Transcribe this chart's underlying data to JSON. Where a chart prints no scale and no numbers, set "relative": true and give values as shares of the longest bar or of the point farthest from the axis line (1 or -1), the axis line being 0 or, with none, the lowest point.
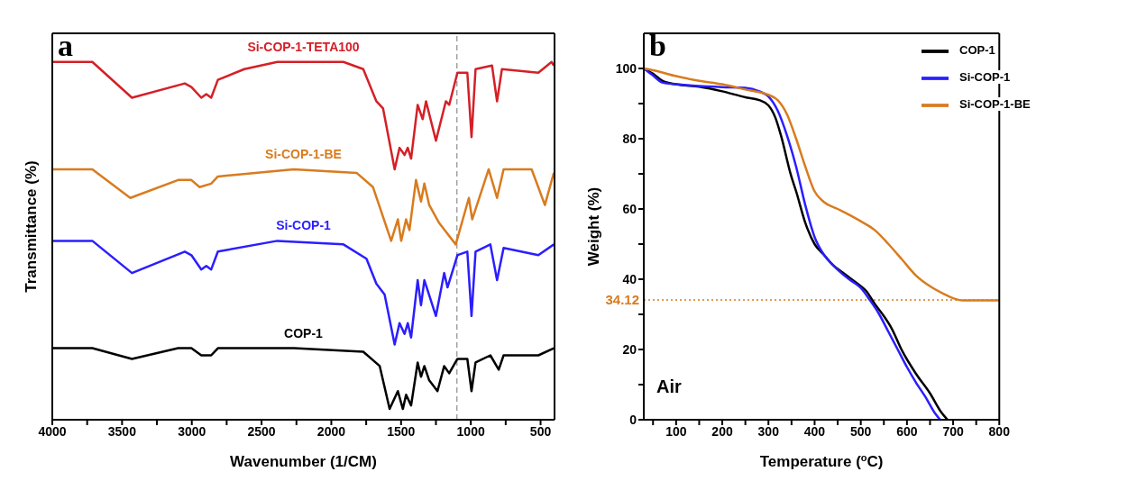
{
  "chart_data": [
    {
      "type": "line",
      "relative": true,
      "xlabel": "Wavenumber (1/CM)",
      "ylabel": "Transmittance (%)",
      "annotations": [
        "a"
      ],
      "legend": false,
      "grid": false,
      "xlim": [
        4000,
        400
      ],
      "xticks": [
        4000,
        {
          "value": 3750,
          "label": null
        },
        3500,
        {
          "value": 3250,
          "label": null
        },
        3000,
        {
          "value": 2750,
          "label": null
        },
        2500,
        {
          "value": 2250,
          "label": null
        },
        2000,
        {
          "value": 1750,
          "label": null
        },
        1500,
        {
          "value": 1250,
          "label": null
        },
        1000,
        {
          "value": 750,
          "label": null
        },
        500
      ],
      "ref_lines": [
        {
          "axis": "x",
          "value": 1100,
          "color": "#a0a0a0",
          "line_style": "dashed"
        }
      ],
      "series": [
        {
          "name": "Si-COP-1-TETA100",
          "color": "#d42027",
          "x": [
            4000,
            3713,
            3429,
            3050,
            3003,
            2932,
            2896,
            2861,
            2813,
            2624,
            2387,
            1913,
            1771,
            1677,
            1629,
            1546,
            1511,
            1475,
            1452,
            1428,
            1381,
            1345,
            1321,
            1250,
            1179,
            1155,
            1096,
            1025,
            995,
            966,
            848,
            812,
            777,
            516,
            421,
            405
          ],
          "values": [
            1.0,
            1.0,
            0.9,
            0.94,
            0.93,
            0.9,
            0.91,
            0.9,
            0.95,
            0.98,
            1.0,
            1.0,
            0.98,
            0.89,
            0.87,
            0.7,
            0.76,
            0.74,
            0.76,
            0.73,
            0.88,
            0.84,
            0.89,
            0.78,
            0.89,
            0.88,
            0.97,
            0.97,
            0.79,
            0.98,
            0.99,
            0.89,
            0.98,
            0.97,
            1.0,
            0.99
          ]
        },
        {
          "name": "Si-COP-1-BE",
          "color": "#d97b1e",
          "x": [
            4000,
            3713,
            3441,
            3098,
            3003,
            2944,
            2861,
            2813,
            2269,
            1819,
            1701,
            1571,
            1523,
            1499,
            1464,
            1440,
            1393,
            1357,
            1333,
            1298,
            1227,
            1108,
            1014,
            990,
            872,
            812,
            765,
            564,
            469,
            405
          ],
          "values": [
            0.7,
            0.7,
            0.62,
            0.67,
            0.67,
            0.65,
            0.66,
            0.68,
            0.7,
            0.69,
            0.65,
            0.5,
            0.56,
            0.5,
            0.56,
            0.53,
            0.67,
            0.61,
            0.66,
            0.6,
            0.55,
            0.49,
            0.62,
            0.56,
            0.7,
            0.62,
            0.7,
            0.7,
            0.6,
            0.69
          ]
        },
        {
          "name": "Si-COP-1",
          "color": "#2a1eff",
          "x": [
            4000,
            3713,
            3429,
            3050,
            3003,
            2932,
            2896,
            2861,
            2813,
            2387,
            1913,
            1748,
            1677,
            1618,
            1546,
            1511,
            1475,
            1452,
            1428,
            1381,
            1357,
            1333,
            1250,
            1191,
            1167,
            1096,
            1025,
            995,
            966,
            860,
            812,
            765,
            516,
            405
          ],
          "values": [
            0.5,
            0.5,
            0.41,
            0.47,
            0.46,
            0.42,
            0.43,
            0.42,
            0.47,
            0.5,
            0.49,
            0.45,
            0.38,
            0.35,
            0.21,
            0.27,
            0.24,
            0.27,
            0.23,
            0.39,
            0.32,
            0.39,
            0.29,
            0.41,
            0.37,
            0.46,
            0.47,
            0.29,
            0.47,
            0.49,
            0.39,
            0.48,
            0.46,
            0.49
          ]
        },
        {
          "name": "COP-1",
          "color": "#000000",
          "x": [
            4000,
            3713,
            3429,
            3098,
            3003,
            2932,
            2861,
            2813,
            2269,
            1771,
            1653,
            1582,
            1523,
            1487,
            1464,
            1428,
            1381,
            1357,
            1333,
            1298,
            1239,
            1191,
            1155,
            1096,
            1025,
            995,
            966,
            860,
            800,
            765,
            516,
            405
          ],
          "values": [
            0.2,
            0.2,
            0.17,
            0.2,
            0.2,
            0.18,
            0.18,
            0.2,
            0.2,
            0.19,
            0.15,
            0.03,
            0.08,
            0.03,
            0.07,
            0.04,
            0.16,
            0.12,
            0.15,
            0.11,
            0.08,
            0.15,
            0.13,
            0.17,
            0.17,
            0.08,
            0.16,
            0.18,
            0.14,
            0.18,
            0.18,
            0.2
          ]
        }
      ]
    },
    {
      "type": "line",
      "xlabel": "Temperature ($^{o}$C)",
      "ylabel": "Weight (%)",
      "annotations": [
        "b",
        "Air"
      ],
      "legend": "top right",
      "grid": false,
      "xlim": [
        30,
        800
      ],
      "xticks": [
        {
          "value": 50,
          "label": null
        },
        100,
        {
          "value": 150,
          "label": null
        },
        200,
        {
          "value": 250,
          "label": null
        },
        300,
        {
          "value": 350,
          "label": null
        },
        400,
        {
          "value": 450,
          "label": null
        },
        500,
        {
          "value": 550,
          "label": null
        },
        600,
        {
          "value": 650,
          "label": null
        },
        700,
        {
          "value": 750,
          "label": null
        },
        800
      ],
      "ylim": [
        0,
        110
      ],
      "yticks": [
        0,
        {
          "value": 10,
          "label": null
        },
        20,
        {
          "value": 30,
          "label": null
        },
        40,
        {
          "value": 50,
          "label": null
        },
        60,
        {
          "value": 70,
          "label": null
        },
        80,
        {
          "value": 90,
          "label": null
        },
        100
      ],
      "ref_lines": [
        {
          "axis": "y",
          "value": 34.12,
          "label": "34.12",
          "color": "#d97b1e",
          "line_style": "dotted"
        }
      ],
      "series": [
        {
          "name": "COP-1",
          "color": "#000000",
          "x": [
            30,
            50,
            70,
            100,
            150,
            200,
            250,
            280,
            300,
            315,
            327,
            349,
            360,
            380,
            400,
            420,
            440,
            460,
            480,
            500,
            512,
            530,
            550,
            566,
            590,
            620,
            650,
            674,
            688
          ],
          "values": [
            100,
            98.5,
            96.5,
            95.5,
            94.8,
            93.5,
            91.8,
            91,
            89.5,
            86,
            81,
            69.5,
            65,
            56,
            50,
            47,
            44,
            42,
            40,
            38,
            36.6,
            33,
            29.5,
            26.2,
            19.5,
            13,
            7.5,
            2.2,
            0
          ]
        },
        {
          "name": "Si-COP-1",
          "color": "#2a1eff",
          "x": [
            30,
            50,
            70,
            100,
            150,
            200,
            250,
            280,
            300,
            320,
            340,
            360,
            380,
            400,
            420,
            440,
            460,
            480,
            500,
            520,
            540,
            560,
            580,
            600,
            620,
            640,
            660,
            672
          ],
          "values": [
            100,
            98,
            96,
            95.5,
            95,
            94.7,
            94.5,
            93.5,
            92,
            88,
            81,
            72,
            61,
            52,
            47,
            44,
            41.5,
            39.5,
            37.5,
            34,
            30,
            25,
            20,
            15,
            10.5,
            6.5,
            2,
            0
          ]
        },
        {
          "name": "Si-COP-1-BE",
          "color": "#d97b1e",
          "x": [
            30,
            50,
            100,
            150,
            200,
            250,
            300,
            320,
            340,
            360,
            380,
            400,
            420,
            450,
            480,
            500,
            530,
            560,
            590,
            620,
            650,
            680,
            700,
            720,
            800
          ],
          "values": [
            100,
            99.5,
            97.8,
            96.5,
            95.5,
            94,
            92.5,
            91,
            87,
            80,
            72,
            65,
            62,
            60,
            58,
            56.5,
            54,
            50,
            45.5,
            41,
            38,
            35.8,
            34.6,
            34,
            34
          ]
        }
      ]
    }
  ]
}
